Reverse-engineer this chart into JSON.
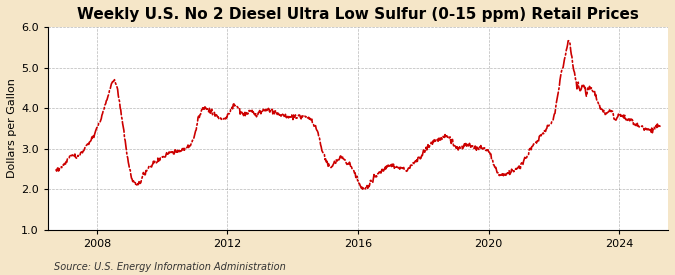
{
  "title": "Weekly U.S. No 2 Diesel Ultra Low Sulfur (0-15 ppm) Retail Prices",
  "ylabel": "Dollars per Gallon",
  "source": "Source: U.S. Energy Information Administration",
  "line_color": "#cc0000",
  "figure_bg_color": "#f5e6c8",
  "axes_bg_color": "#ffffff",
  "ylim": [
    1.0,
    6.0
  ],
  "yticks": [
    1.0,
    2.0,
    3.0,
    4.0,
    5.0,
    6.0
  ],
  "xticks_years": [
    2008,
    2012,
    2016,
    2020,
    2024
  ],
  "xstart_year": 2006.5,
  "xend_year": 2025.5,
  "title_fontsize": 11,
  "label_fontsize": 8,
  "tick_fontsize": 8,
  "source_fontsize": 7,
  "key_points": [
    [
      2006.75,
      2.47
    ],
    [
      2007.0,
      2.6
    ],
    [
      2007.2,
      2.85
    ],
    [
      2007.4,
      2.78
    ],
    [
      2007.5,
      2.88
    ],
    [
      2007.6,
      2.95
    ],
    [
      2007.7,
      3.1
    ],
    [
      2007.8,
      3.2
    ],
    [
      2007.9,
      3.3
    ],
    [
      2008.0,
      3.5
    ],
    [
      2008.15,
      3.8
    ],
    [
      2008.3,
      4.2
    ],
    [
      2008.45,
      4.6
    ],
    [
      2008.55,
      4.72
    ],
    [
      2008.62,
      4.55
    ],
    [
      2008.7,
      4.1
    ],
    [
      2008.8,
      3.6
    ],
    [
      2008.9,
      3.0
    ],
    [
      2009.0,
      2.5
    ],
    [
      2009.1,
      2.18
    ],
    [
      2009.2,
      2.12
    ],
    [
      2009.35,
      2.2
    ],
    [
      2009.5,
      2.45
    ],
    [
      2009.6,
      2.55
    ],
    [
      2009.75,
      2.65
    ],
    [
      2009.9,
      2.72
    ],
    [
      2010.0,
      2.8
    ],
    [
      2010.2,
      2.88
    ],
    [
      2010.4,
      2.92
    ],
    [
      2010.6,
      2.95
    ],
    [
      2010.75,
      3.05
    ],
    [
      2010.9,
      3.1
    ],
    [
      2011.0,
      3.35
    ],
    [
      2011.1,
      3.7
    ],
    [
      2011.2,
      3.95
    ],
    [
      2011.3,
      4.05
    ],
    [
      2011.4,
      3.98
    ],
    [
      2011.5,
      3.9
    ],
    [
      2011.65,
      3.82
    ],
    [
      2011.75,
      3.78
    ],
    [
      2011.85,
      3.72
    ],
    [
      2012.0,
      3.78
    ],
    [
      2012.1,
      3.95
    ],
    [
      2012.2,
      4.1
    ],
    [
      2012.3,
      4.05
    ],
    [
      2012.4,
      3.92
    ],
    [
      2012.5,
      3.85
    ],
    [
      2012.6,
      3.88
    ],
    [
      2012.7,
      3.92
    ],
    [
      2012.8,
      3.88
    ],
    [
      2012.9,
      3.82
    ],
    [
      2013.0,
      3.9
    ],
    [
      2013.1,
      3.95
    ],
    [
      2013.2,
      3.98
    ],
    [
      2013.3,
      3.95
    ],
    [
      2013.4,
      3.92
    ],
    [
      2013.5,
      3.88
    ],
    [
      2013.6,
      3.82
    ],
    [
      2013.7,
      3.85
    ],
    [
      2013.8,
      3.8
    ],
    [
      2013.9,
      3.75
    ],
    [
      2014.0,
      3.78
    ],
    [
      2014.1,
      3.8
    ],
    [
      2014.2,
      3.82
    ],
    [
      2014.3,
      3.8
    ],
    [
      2014.4,
      3.78
    ],
    [
      2014.5,
      3.75
    ],
    [
      2014.6,
      3.7
    ],
    [
      2014.7,
      3.55
    ],
    [
      2014.8,
      3.3
    ],
    [
      2014.9,
      2.98
    ],
    [
      2015.0,
      2.75
    ],
    [
      2015.1,
      2.6
    ],
    [
      2015.2,
      2.55
    ],
    [
      2015.3,
      2.68
    ],
    [
      2015.4,
      2.72
    ],
    [
      2015.5,
      2.78
    ],
    [
      2015.6,
      2.72
    ],
    [
      2015.7,
      2.65
    ],
    [
      2015.8,
      2.55
    ],
    [
      2015.9,
      2.4
    ],
    [
      2016.0,
      2.18
    ],
    [
      2016.1,
      2.05
    ],
    [
      2016.2,
      2.0
    ],
    [
      2016.3,
      2.08
    ],
    [
      2016.4,
      2.2
    ],
    [
      2016.5,
      2.3
    ],
    [
      2016.6,
      2.38
    ],
    [
      2016.7,
      2.42
    ],
    [
      2016.8,
      2.48
    ],
    [
      2016.9,
      2.55
    ],
    [
      2017.0,
      2.62
    ],
    [
      2017.1,
      2.58
    ],
    [
      2017.2,
      2.55
    ],
    [
      2017.3,
      2.52
    ],
    [
      2017.4,
      2.5
    ],
    [
      2017.5,
      2.48
    ],
    [
      2017.6,
      2.55
    ],
    [
      2017.7,
      2.65
    ],
    [
      2017.8,
      2.72
    ],
    [
      2017.9,
      2.78
    ],
    [
      2018.0,
      2.9
    ],
    [
      2018.1,
      3.0
    ],
    [
      2018.2,
      3.1
    ],
    [
      2018.3,
      3.18
    ],
    [
      2018.4,
      3.22
    ],
    [
      2018.5,
      3.25
    ],
    [
      2018.6,
      3.28
    ],
    [
      2018.7,
      3.32
    ],
    [
      2018.8,
      3.28
    ],
    [
      2018.9,
      3.15
    ],
    [
      2019.0,
      3.05
    ],
    [
      2019.1,
      3.0
    ],
    [
      2019.2,
      3.05
    ],
    [
      2019.3,
      3.08
    ],
    [
      2019.4,
      3.1
    ],
    [
      2019.5,
      3.08
    ],
    [
      2019.6,
      3.05
    ],
    [
      2019.7,
      3.02
    ],
    [
      2019.8,
      3.0
    ],
    [
      2019.9,
      2.98
    ],
    [
      2020.0,
      2.95
    ],
    [
      2020.1,
      2.8
    ],
    [
      2020.2,
      2.55
    ],
    [
      2020.3,
      2.38
    ],
    [
      2020.4,
      2.35
    ],
    [
      2020.5,
      2.38
    ],
    [
      2020.6,
      2.42
    ],
    [
      2020.7,
      2.45
    ],
    [
      2020.8,
      2.48
    ],
    [
      2020.9,
      2.52
    ],
    [
      2021.0,
      2.6
    ],
    [
      2021.1,
      2.72
    ],
    [
      2021.2,
      2.85
    ],
    [
      2021.3,
      3.0
    ],
    [
      2021.4,
      3.1
    ],
    [
      2021.5,
      3.2
    ],
    [
      2021.6,
      3.3
    ],
    [
      2021.7,
      3.42
    ],
    [
      2021.8,
      3.52
    ],
    [
      2021.9,
      3.62
    ],
    [
      2022.0,
      3.78
    ],
    [
      2022.1,
      4.2
    ],
    [
      2022.2,
      4.75
    ],
    [
      2022.3,
      5.1
    ],
    [
      2022.4,
      5.5
    ],
    [
      2022.45,
      5.7
    ],
    [
      2022.5,
      5.58
    ],
    [
      2022.55,
      5.25
    ],
    [
      2022.6,
      5.05
    ],
    [
      2022.65,
      4.8
    ],
    [
      2022.7,
      4.55
    ],
    [
      2022.75,
      4.6
    ],
    [
      2022.8,
      4.45
    ],
    [
      2022.85,
      4.5
    ],
    [
      2022.9,
      4.55
    ],
    [
      2022.95,
      4.5
    ],
    [
      2023.0,
      4.28
    ],
    [
      2023.05,
      4.45
    ],
    [
      2023.1,
      4.52
    ],
    [
      2023.15,
      4.48
    ],
    [
      2023.2,
      4.4
    ],
    [
      2023.25,
      4.42
    ],
    [
      2023.3,
      4.28
    ],
    [
      2023.35,
      4.15
    ],
    [
      2023.4,
      4.05
    ],
    [
      2023.5,
      3.95
    ],
    [
      2023.6,
      3.88
    ],
    [
      2023.7,
      3.92
    ],
    [
      2023.75,
      3.98
    ],
    [
      2023.8,
      3.9
    ],
    [
      2023.85,
      3.8
    ],
    [
      2023.9,
      3.72
    ],
    [
      2024.0,
      3.85
    ],
    [
      2024.1,
      3.8
    ],
    [
      2024.2,
      3.75
    ],
    [
      2024.3,
      3.72
    ],
    [
      2024.4,
      3.68
    ],
    [
      2024.5,
      3.6
    ],
    [
      2024.6,
      3.55
    ],
    [
      2024.7,
      3.52
    ],
    [
      2024.8,
      3.48
    ],
    [
      2024.9,
      3.45
    ],
    [
      2025.0,
      3.5
    ],
    [
      2025.2,
      3.55
    ]
  ]
}
